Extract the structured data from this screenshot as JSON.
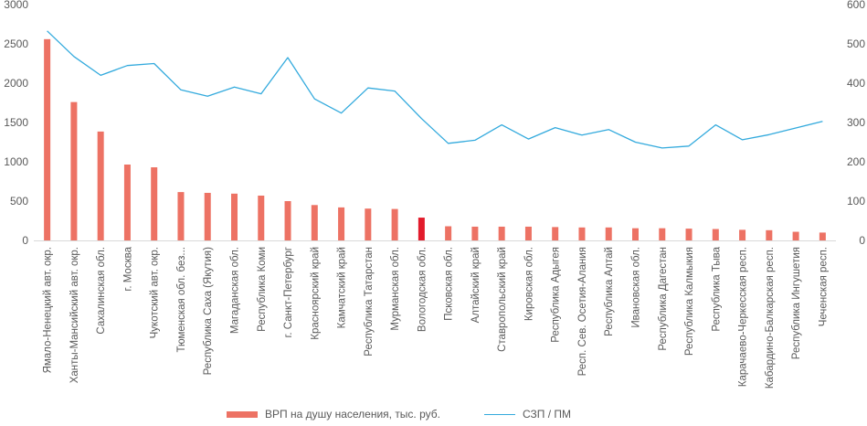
{
  "chart_data": {
    "type": "bar+line",
    "categories": [
      "Ямало-Ненецкий авт. окр.",
      "Ханты-Мансийский авт. окр.",
      "Сахалинская обл.",
      "г. Москва",
      "Чукотский авт. окр.",
      "Тюменская обл. без...",
      "Республика Саха (Якутия)",
      "Магаданская обл.",
      "Республика Коми",
      "г. Санкт-Петербург",
      "Красноярский край",
      "Камчатский край",
      "Республика Татарстан",
      "Мурманская обл.",
      "Вологодская обл.",
      "Псковская обл.",
      "Алтайский край",
      "Ставропольский край",
      "Кировская обл.",
      "Республика Адыгея",
      "Респ. Сев. Осетия-Алания",
      "Республика Алтай",
      "Ивановская обл.",
      "Республика Дагестан",
      "Республика Калмыкия",
      "Республика Тыва",
      "Карачаево-Черкесская респ.",
      "Кабардино-Балкарская респ.",
      "Республика Ингушетия",
      "Чеченская респ."
    ],
    "series": [
      {
        "name": "ВРП на душу населения, тыс. руб.",
        "type": "bar",
        "axis": "left",
        "color": "#ED7264",
        "highlight_index": 14,
        "highlight_color": "#E21B2B",
        "values": [
          2560,
          1760,
          1385,
          965,
          930,
          615,
          605,
          595,
          570,
          500,
          450,
          420,
          405,
          400,
          290,
          180,
          175,
          175,
          175,
          170,
          165,
          165,
          155,
          155,
          150,
          145,
          135,
          130,
          110,
          100
        ]
      },
      {
        "name": "СЗП / ПМ",
        "type": "line",
        "axis": "right",
        "color": "#33AADD",
        "values": [
          533,
          468,
          420,
          445,
          450,
          383,
          367,
          390,
          373,
          465,
          360,
          324,
          388,
          380,
          310,
          247,
          255,
          294,
          258,
          287,
          268,
          282,
          250,
          235,
          240,
          294,
          256,
          269,
          286,
          303
        ]
      }
    ],
    "y_left": {
      "min": 0,
      "max": 3000,
      "ticks": [
        "0",
        "500",
        "1000",
        "1500",
        "2000",
        "2500",
        "3000"
      ]
    },
    "y_right": {
      "min": 0,
      "max": 600,
      "ticks": [
        "0",
        "100",
        "200",
        "300",
        "400",
        "500",
        "600"
      ]
    },
    "grid": false,
    "legend": "bottom"
  }
}
